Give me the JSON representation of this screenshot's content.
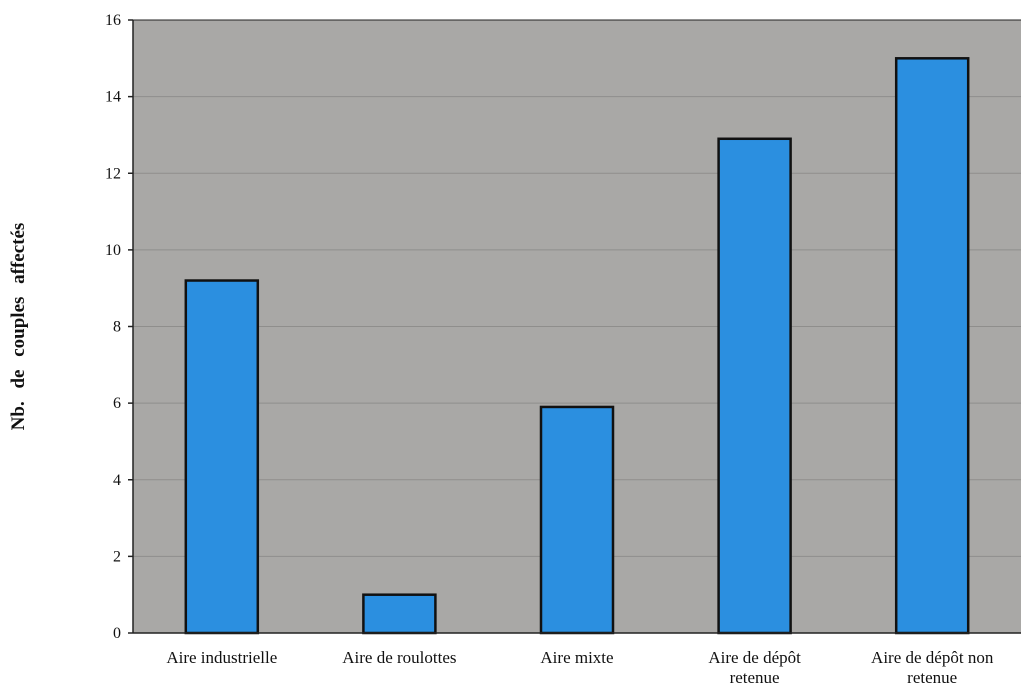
{
  "colors": {
    "plot_background": "#a9a8a6",
    "bar_fill": "#2b8fe0",
    "bar_stroke": "#111111",
    "gridline": "#8f8e8c",
    "axis": "#222222"
  },
  "chart_data": {
    "type": "bar",
    "title": "",
    "xlabel": "",
    "ylabel": "Nb. de couples affectés",
    "ylim": [
      0,
      16
    ],
    "yticks": [
      0,
      2,
      4,
      6,
      8,
      10,
      12,
      14,
      16
    ],
    "grid": true,
    "legend": "none",
    "categories": [
      [
        "Aire industrielle"
      ],
      [
        "Aire de roulottes"
      ],
      [
        "Aire mixte"
      ],
      [
        "Aire de dépôt",
        "retenue"
      ],
      [
        "Aire de dépôt non",
        "retenue"
      ]
    ],
    "values": [
      9.2,
      1,
      5.9,
      12.9,
      15
    ]
  }
}
